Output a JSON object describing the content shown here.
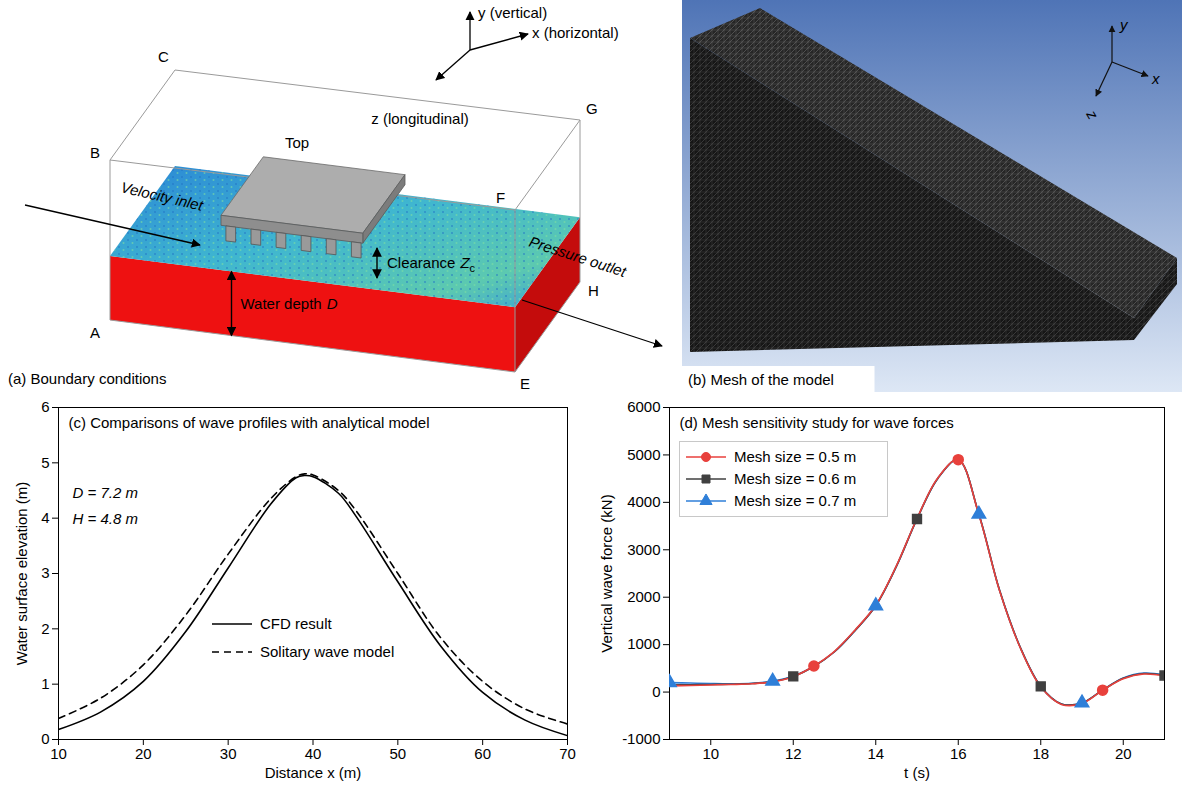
{
  "figure": {
    "panel_a": {
      "caption": "(a) Boundary conditions",
      "axes": {
        "y": "y (vertical)",
        "x": "x (horizontal)",
        "z": "z (longitudinal)"
      },
      "corner_labels": [
        "C",
        "B",
        "G",
        "F",
        "A",
        "H",
        "E"
      ],
      "labels": {
        "top": "Top",
        "inlet": "Velocity inlet",
        "outlet": "Pressure outlet",
        "clearance": {
          "text": "Clearance",
          "symbol": "Z",
          "subscript": "c"
        },
        "depth": {
          "text": "Water depth",
          "symbol": "D"
        }
      }
    },
    "panel_b": {
      "caption": "(b) Mesh of the model",
      "axes": {
        "y": "y",
        "x": "x",
        "z": "z"
      }
    }
  },
  "chart_data": [
    {
      "type": "line",
      "title": "(c) Comparisons of wave profiles with analytical model",
      "x_label": "Distance x (m)",
      "y_label": "Water surface elevation (m)",
      "annotations": [
        "D = 7.2 m",
        "H = 4.8 m"
      ],
      "x": [
        10,
        15,
        20,
        25,
        30,
        35,
        38,
        39,
        40,
        43,
        45,
        50,
        55,
        60,
        65,
        70
      ],
      "series": [
        {
          "name": "CFD result",
          "color": "#000000",
          "line_style": "solid",
          "values": [
            0.18,
            0.5,
            1.05,
            1.95,
            3.1,
            4.25,
            4.73,
            4.77,
            4.75,
            4.45,
            4.05,
            2.85,
            1.7,
            0.85,
            0.35,
            0.07
          ]
        },
        {
          "name": "Solitary wave model",
          "color": "#000000",
          "line_style": "dashed",
          "values": [
            0.38,
            0.75,
            1.35,
            2.25,
            3.35,
            4.35,
            4.75,
            4.8,
            4.78,
            4.5,
            4.15,
            3.0,
            1.85,
            1.05,
            0.55,
            0.28
          ]
        }
      ],
      "xlim": [
        10,
        70
      ],
      "xticks": [
        10,
        20,
        30,
        40,
        50,
        60,
        70
      ],
      "ylim": [
        0,
        6
      ],
      "yticks": [
        0,
        1,
        2,
        3,
        4,
        5,
        6
      ],
      "legend": "bottom",
      "grid": false
    },
    {
      "type": "line",
      "title": "(d) Mesh sensitivity study for wave forces",
      "x_label": "t (s)",
      "y_label": "Vertical wave force (kN)",
      "x": [
        9,
        9.5,
        10,
        10.5,
        11,
        11.5,
        12,
        12.5,
        13,
        13.5,
        14,
        14.5,
        15,
        15.5,
        16,
        16.5,
        17,
        17.5,
        18,
        18.5,
        19,
        19.5,
        20,
        20.5,
        21
      ],
      "series": [
        {
          "name": "Mesh size = 0.5 m",
          "color": "#e8413c",
          "marker": "circle",
          "line_style": "solid",
          "values": [
            130,
            140,
            150,
            160,
            175,
            215,
            325,
            550,
            860,
            1310,
            1830,
            2660,
            3660,
            4510,
            4900,
            3740,
            2140,
            940,
            110,
            -260,
            -240,
            40,
            280,
            380,
            340
          ],
          "marker_x": [
            12.5,
            16,
            19.5
          ],
          "marker_values": [
            550,
            4900,
            40
          ]
        },
        {
          "name": "Mesh size = 0.6 m",
          "color": "#404040",
          "marker": "square",
          "line_style": "solid",
          "values": [
            150,
            155,
            160,
            165,
            180,
            220,
            330,
            540,
            850,
            1300,
            1820,
            2650,
            3650,
            4500,
            4900,
            3750,
            2150,
            950,
            120,
            -250,
            -230,
            40,
            290,
            390,
            350
          ],
          "marker_x": [
            12,
            15,
            18,
            21
          ],
          "marker_values": [
            330,
            3650,
            120,
            350
          ]
        },
        {
          "name": "Mesh size = 0.7 m",
          "color": "#2f7fd8",
          "marker": "triangle",
          "line_style": "solid",
          "values": [
            200,
            190,
            180,
            175,
            185,
            230,
            335,
            545,
            850,
            1300,
            1820,
            2650,
            3650,
            4500,
            4895,
            3750,
            2150,
            950,
            120,
            -250,
            -230,
            45,
            295,
            400,
            360
          ],
          "marker_x": [
            9,
            11.5,
            14,
            16.5,
            19
          ],
          "marker_values": [
            200,
            230,
            1820,
            3750,
            -230
          ]
        }
      ],
      "xlim": [
        9,
        21
      ],
      "xticks": [
        10,
        12,
        14,
        16,
        18,
        20
      ],
      "ylim": [
        -1000,
        6000
      ],
      "yticks": [
        -1000,
        0,
        1000,
        2000,
        3000,
        4000,
        5000,
        6000
      ],
      "legend": "top-left",
      "grid": false
    }
  ]
}
